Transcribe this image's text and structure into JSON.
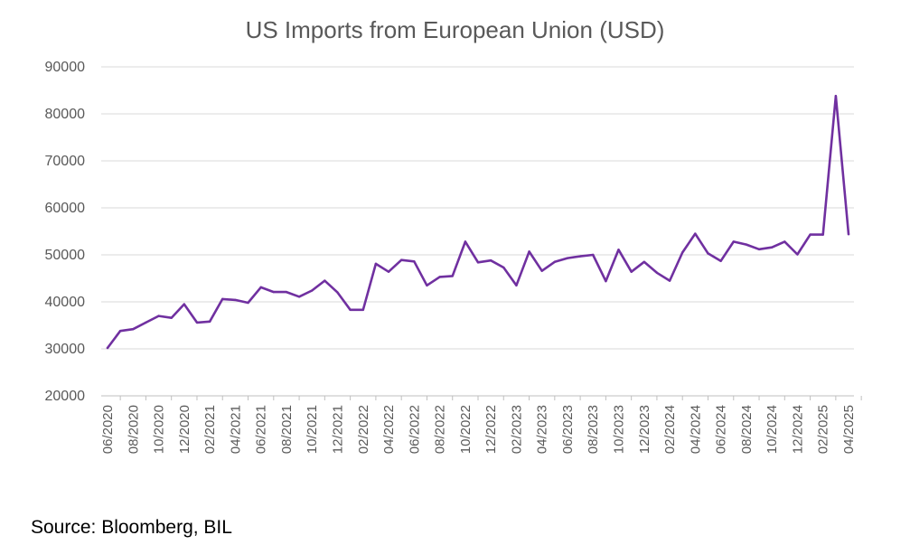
{
  "chart_data": {
    "type": "line",
    "title": "US Imports from European Union (USD)",
    "xlabel": "",
    "ylabel": "",
    "ylim": [
      20000,
      90000
    ],
    "yticks": [
      20000,
      30000,
      40000,
      50000,
      60000,
      70000,
      80000,
      90000
    ],
    "grid": true,
    "legend": "none",
    "line_color": "#7030A0",
    "x": [
      "06/2020",
      "07/2020",
      "08/2020",
      "09/2020",
      "10/2020",
      "11/2020",
      "12/2020",
      "01/2021",
      "02/2021",
      "03/2021",
      "04/2021",
      "05/2021",
      "06/2021",
      "07/2021",
      "08/2021",
      "09/2021",
      "10/2021",
      "11/2021",
      "12/2021",
      "01/2022",
      "02/2022",
      "03/2022",
      "04/2022",
      "05/2022",
      "06/2022",
      "07/2022",
      "08/2022",
      "09/2022",
      "10/2022",
      "11/2022",
      "12/2022",
      "01/2023",
      "02/2023",
      "03/2023",
      "04/2023",
      "05/2023",
      "06/2023",
      "07/2023",
      "08/2023",
      "09/2023",
      "10/2023",
      "11/2023",
      "12/2023",
      "01/2024",
      "02/2024",
      "03/2024",
      "04/2024",
      "05/2024",
      "06/2024",
      "07/2024",
      "08/2024",
      "09/2024",
      "10/2024",
      "11/2024",
      "12/2024",
      "01/2025",
      "02/2025",
      "03/2025",
      "04/2025"
    ],
    "xtick_labels": [
      "06/2020",
      "08/2020",
      "10/2020",
      "12/2020",
      "02/2021",
      "04/2021",
      "06/2021",
      "08/2021",
      "10/2021",
      "12/2021",
      "02/2022",
      "04/2022",
      "06/2022",
      "08/2022",
      "10/2022",
      "12/2022",
      "02/2023",
      "04/2023",
      "06/2023",
      "08/2023",
      "10/2023",
      "12/2023",
      "02/2024",
      "04/2024",
      "06/2024",
      "08/2024",
      "10/2024",
      "12/2024",
      "02/2025",
      "04/2025"
    ],
    "series": [
      {
        "values": [
          30200,
          33800,
          34200,
          35600,
          37000,
          36600,
          39500,
          35600,
          35800,
          40600,
          40400,
          39800,
          43100,
          42100,
          42100,
          41100,
          42400,
          44500,
          42000,
          38300,
          38300,
          48100,
          46400,
          48900,
          48600,
          43500,
          45300,
          45500,
          52800,
          48400,
          48800,
          47300,
          43500,
          50700,
          46600,
          48500,
          49300,
          49700,
          50000,
          44400,
          51100,
          46400,
          48500,
          46200,
          44500,
          50500,
          54500,
          50300,
          48700,
          52800,
          52200,
          51200,
          51600,
          52800,
          50100,
          54300,
          54300,
          83800,
          54400
        ]
      }
    ]
  },
  "source_note": "Source: Bloomberg, BIL"
}
